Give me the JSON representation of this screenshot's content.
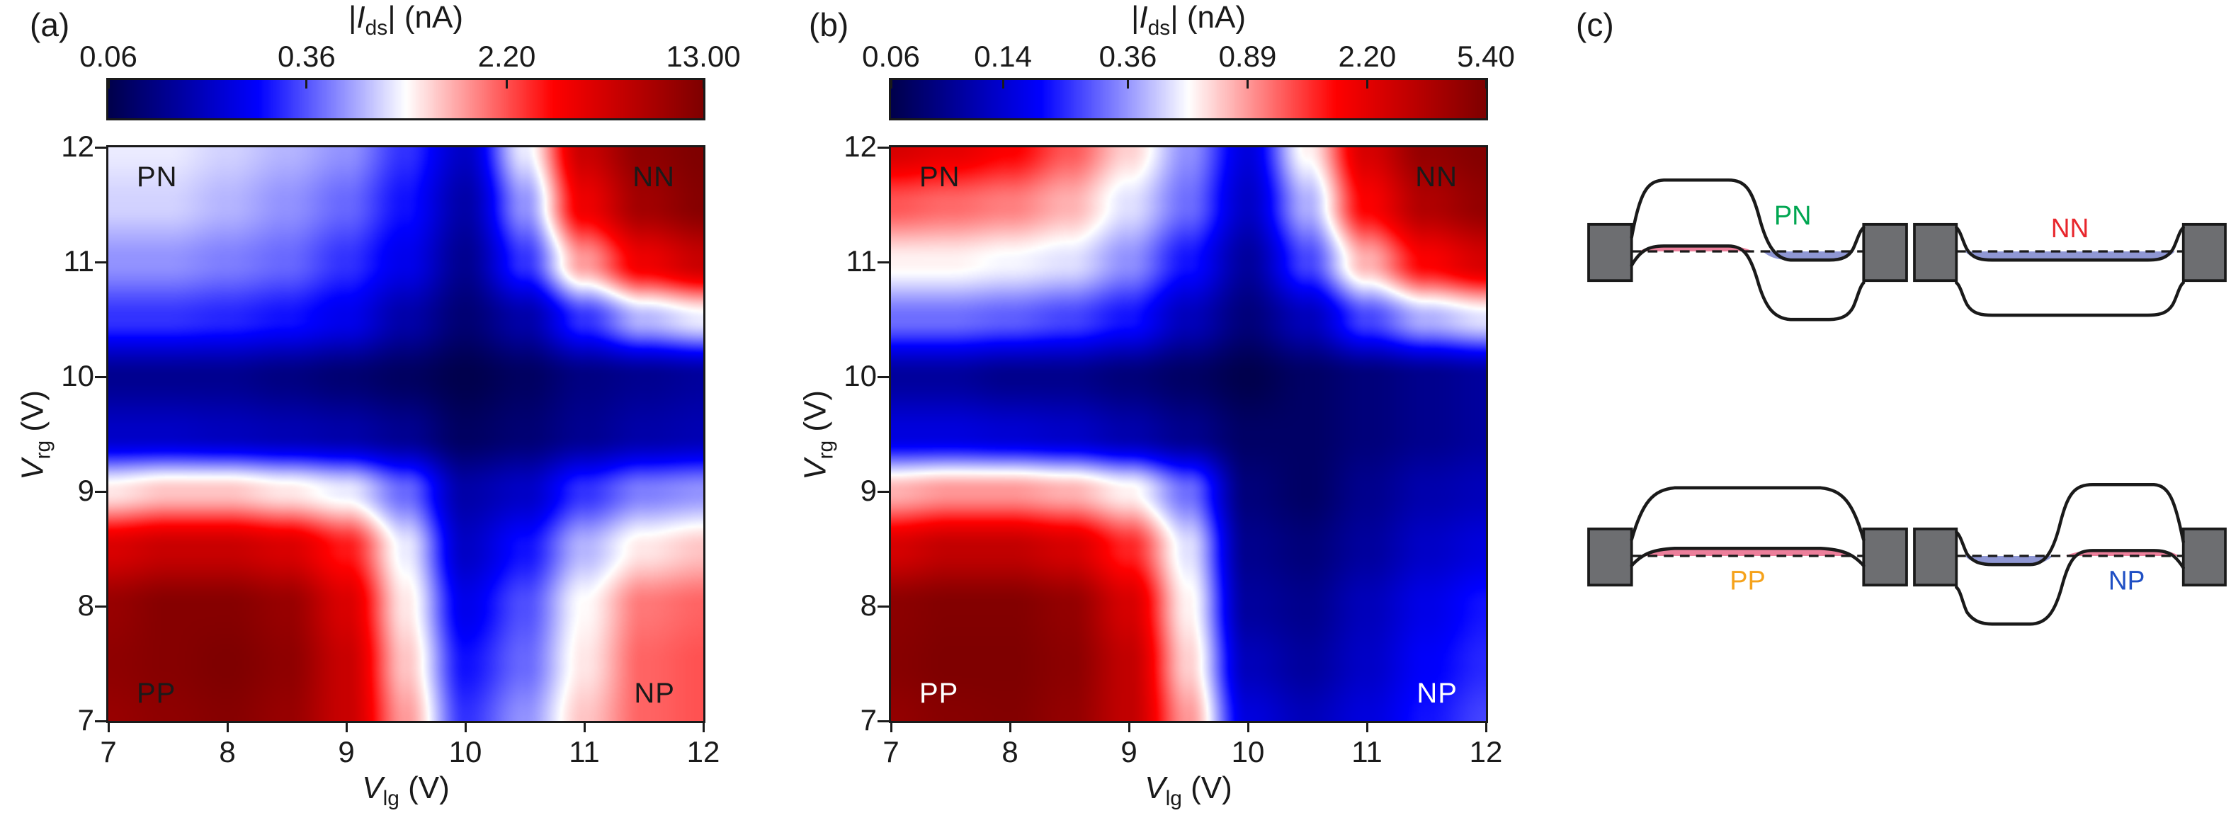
{
  "figure": {
    "panel_a_label": "(a)",
    "panel_b_label": "(b)",
    "panel_c_label": "(c)"
  },
  "chart_data": [
    {
      "panel": "a",
      "type": "heatmap",
      "title": {
        "prefix": "|",
        "symbol": "I",
        "subscript": "ds",
        "suffix": "| (nA)"
      },
      "xlabel": {
        "symbol": "V",
        "subscript": "lg",
        "suffix": " (V)"
      },
      "ylabel": {
        "symbol": "V",
        "subscript": "rg",
        "suffix": " (V)"
      },
      "x_range": [
        7,
        12
      ],
      "y_range": [
        7,
        12
      ],
      "xticks": [
        7,
        8,
        9,
        10,
        11,
        12
      ],
      "yticks": [
        7,
        8,
        9,
        10,
        11,
        12
      ],
      "color_scale": {
        "type": "log",
        "colormap": "seismic",
        "min": 0.06,
        "max": 13.0,
        "ticks": [
          "0.06",
          "0.36",
          "2.20",
          "13.00"
        ],
        "tick_values": [
          0.06,
          0.36,
          2.2,
          13.0
        ]
      },
      "region_labels": [
        {
          "text": "PN",
          "corner": "top-left",
          "color": "#1a1a1a"
        },
        {
          "text": "NN",
          "corner": "top-right",
          "color": "#1a1a1a"
        },
        {
          "text": "PP",
          "corner": "bottom-left",
          "color": "#1a1a1a"
        },
        {
          "text": "NP",
          "corner": "bottom-right",
          "color": "#1a1a1a"
        }
      ],
      "grid_x": [
        7,
        7.5,
        8,
        8.5,
        9,
        9.5,
        10,
        10.5,
        11,
        11.5,
        12
      ],
      "grid_y": [
        7,
        7.5,
        8,
        8.5,
        9,
        9.5,
        10,
        10.5,
        11,
        11.5,
        12
      ],
      "rows_order": "y ascending (7 to 12), bottom row first",
      "values_nA": [
        [
          10,
          11,
          12,
          10,
          6,
          1.5,
          0.3,
          0.5,
          1.2,
          2.0,
          2.2
        ],
        [
          11,
          12,
          13,
          11,
          6,
          1.2,
          0.25,
          0.4,
          1.0,
          2.0,
          2.2
        ],
        [
          10,
          12,
          12,
          10,
          5,
          1.0,
          0.2,
          0.35,
          0.9,
          1.8,
          2.0
        ],
        [
          5,
          6,
          6,
          5,
          3,
          0.8,
          0.15,
          0.25,
          0.6,
          1.0,
          1.2
        ],
        [
          1.0,
          1.2,
          1.2,
          1.0,
          0.8,
          0.4,
          0.12,
          0.15,
          0.3,
          0.45,
          0.5
        ],
        [
          0.15,
          0.15,
          0.14,
          0.13,
          0.12,
          0.1,
          0.07,
          0.08,
          0.1,
          0.12,
          0.13
        ],
        [
          0.1,
          0.1,
          0.1,
          0.09,
          0.08,
          0.07,
          0.06,
          0.07,
          0.09,
          0.1,
          0.11
        ],
        [
          0.3,
          0.3,
          0.28,
          0.25,
          0.2,
          0.12,
          0.08,
          0.12,
          0.3,
          0.6,
          0.8
        ],
        [
          0.5,
          0.5,
          0.45,
          0.4,
          0.3,
          0.2,
          0.1,
          0.3,
          1.5,
          4,
          6
        ],
        [
          0.7,
          0.7,
          0.6,
          0.5,
          0.4,
          0.25,
          0.12,
          0.5,
          4,
          9,
          12
        ],
        [
          0.8,
          0.8,
          0.7,
          0.6,
          0.5,
          0.3,
          0.15,
          0.8,
          6,
          11,
          13
        ]
      ]
    },
    {
      "panel": "b",
      "type": "heatmap",
      "title": {
        "prefix": "|",
        "symbol": "I",
        "subscript": "ds",
        "suffix": "| (nA)"
      },
      "xlabel": {
        "symbol": "V",
        "subscript": "lg",
        "suffix": " (V)"
      },
      "ylabel": {
        "symbol": "V",
        "subscript": "rg",
        "suffix": " (V)"
      },
      "x_range": [
        7,
        12
      ],
      "y_range": [
        7,
        12
      ],
      "xticks": [
        7,
        8,
        9,
        10,
        11,
        12
      ],
      "yticks": [
        7,
        8,
        9,
        10,
        11,
        12
      ],
      "color_scale": {
        "type": "log",
        "colormap": "seismic",
        "min": 0.06,
        "max": 5.4,
        "ticks": [
          "0.06",
          "0.14",
          "0.36",
          "0.89",
          "2.20",
          "5.40"
        ],
        "tick_values": [
          0.06,
          0.14,
          0.36,
          0.89,
          2.2,
          5.4
        ]
      },
      "region_labels": [
        {
          "text": "PN",
          "corner": "top-left",
          "color": "#1a1a1a"
        },
        {
          "text": "NN",
          "corner": "top-right",
          "color": "#1a1a1a"
        },
        {
          "text": "PP",
          "corner": "bottom-left",
          "color": "#ffffff"
        },
        {
          "text": "NP",
          "corner": "bottom-right",
          "color": "#ffffff"
        }
      ],
      "grid_x": [
        7,
        7.5,
        8,
        8.5,
        9,
        9.5,
        10,
        10.5,
        11,
        11.5,
        12
      ],
      "grid_y": [
        7,
        7.5,
        8,
        8.5,
        9,
        9.5,
        10,
        10.5,
        11,
        11.5,
        12
      ],
      "rows_order": "y ascending (7 to 12), bottom row first",
      "values_nA": [
        [
          4.5,
          5,
          5.2,
          4.5,
          3,
          0.9,
          0.15,
          0.12,
          0.15,
          0.2,
          0.25
        ],
        [
          5,
          5.4,
          5.4,
          4.8,
          3,
          0.7,
          0.12,
          0.1,
          0.13,
          0.18,
          0.22
        ],
        [
          4.8,
          5.2,
          5.2,
          4.5,
          2.5,
          0.6,
          0.1,
          0.09,
          0.12,
          0.16,
          0.2
        ],
        [
          2.5,
          3,
          3,
          2.5,
          1.5,
          0.5,
          0.09,
          0.08,
          0.1,
          0.13,
          0.15
        ],
        [
          0.8,
          0.9,
          0.9,
          0.8,
          0.6,
          0.3,
          0.08,
          0.07,
          0.09,
          0.11,
          0.12
        ],
        [
          0.15,
          0.15,
          0.14,
          0.13,
          0.11,
          0.09,
          0.07,
          0.07,
          0.08,
          0.09,
          0.1
        ],
        [
          0.1,
          0.1,
          0.09,
          0.09,
          0.08,
          0.07,
          0.06,
          0.07,
          0.08,
          0.09,
          0.1
        ],
        [
          0.3,
          0.3,
          0.28,
          0.25,
          0.2,
          0.12,
          0.08,
          0.12,
          0.25,
          0.4,
          0.5
        ],
        [
          0.6,
          0.6,
          0.55,
          0.5,
          0.35,
          0.2,
          0.1,
          0.25,
          0.8,
          1.8,
          2.5
        ],
        [
          1.2,
          1.1,
          1.0,
          0.8,
          0.5,
          0.3,
          0.13,
          0.4,
          1.8,
          3.5,
          4.5
        ],
        [
          2.5,
          2.2,
          1.8,
          1.2,
          0.7,
          0.35,
          0.15,
          0.6,
          2.5,
          4.5,
          5.2
        ]
      ]
    },
    {
      "panel": "c",
      "type": "band-diagram-set",
      "hole_fill": "#EC7F9B",
      "electron_fill": "#8F97D4",
      "contact_fill": "#6D6E71",
      "diagrams": [
        {
          "label": "PN",
          "label_color": "#00A651",
          "left_region": "p",
          "right_region": "n"
        },
        {
          "label": "NN",
          "label_color": "#E8262C",
          "left_region": "n",
          "right_region": "n"
        },
        {
          "label": "PP",
          "label_color": "#F5A21B",
          "left_region": "p",
          "right_region": "p"
        },
        {
          "label": "NP",
          "label_color": "#1F4FC4",
          "left_region": "n",
          "right_region": "p"
        }
      ]
    }
  ]
}
